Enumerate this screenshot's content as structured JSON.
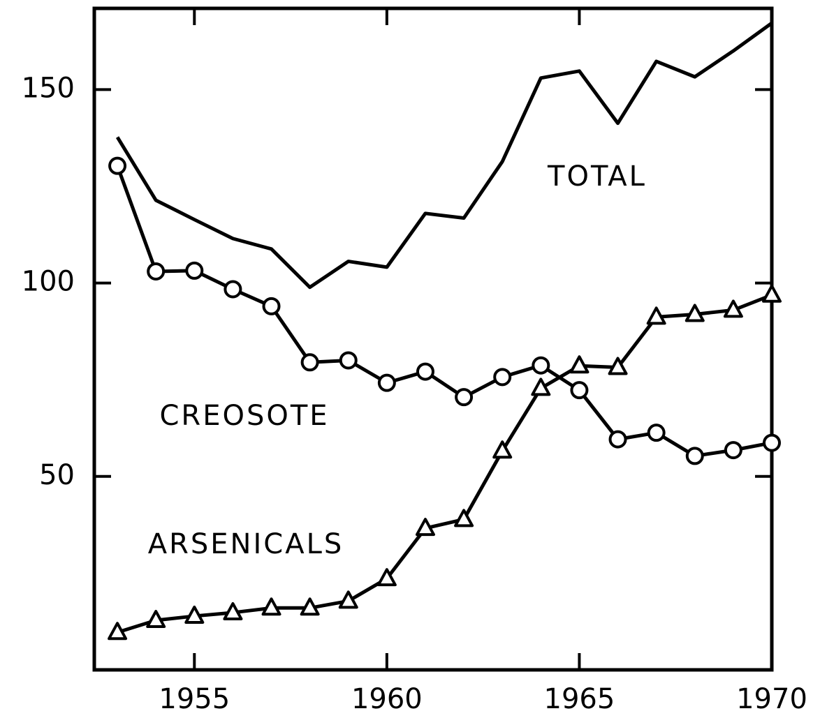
{
  "chart_data": {
    "type": "line",
    "x": [
      1953,
      1954,
      1955,
      1956,
      1957,
      1958,
      1959,
      1960,
      1961,
      1962,
      1963,
      1964,
      1965,
      1966,
      1967,
      1968,
      1969,
      1970
    ],
    "series": [
      {
        "name": "TOTAL",
        "color": "#000000",
        "values": [
          137.7,
          121.4,
          116.4,
          111.5,
          108.8,
          98.9,
          105.6,
          104.1,
          118,
          116.8,
          131.4,
          153,
          154.8,
          141.3,
          157.3,
          153.3,
          160,
          167.2
        ]
      },
      {
        "name": "CREOSOTE",
        "color": "#000000",
        "marker": "circle",
        "values": [
          130.3,
          103,
          103.2,
          98.4,
          94,
          79.5,
          80,
          74.2,
          77.1,
          70.5,
          75.7,
          78.7,
          72.3,
          59.6,
          61.3,
          55.3,
          56.8,
          58.7
        ]
      },
      {
        "name": "ARSENICALS",
        "color": "#000000",
        "marker": "triangle",
        "values": [
          9.7,
          12.8,
          13.9,
          14.8,
          16,
          16,
          17.8,
          23.6,
          36.6,
          38.9,
          56.6,
          72.8,
          78.6,
          78.2,
          91.2,
          91.9,
          93,
          96.9
        ]
      }
    ],
    "xlim": [
      1952.4,
      1970
    ],
    "xticks": [
      1955,
      1960,
      1965,
      1970
    ],
    "ylim": [
      0,
      171
    ],
    "yticks": [
      50,
      100,
      150
    ],
    "grid": false
  }
}
